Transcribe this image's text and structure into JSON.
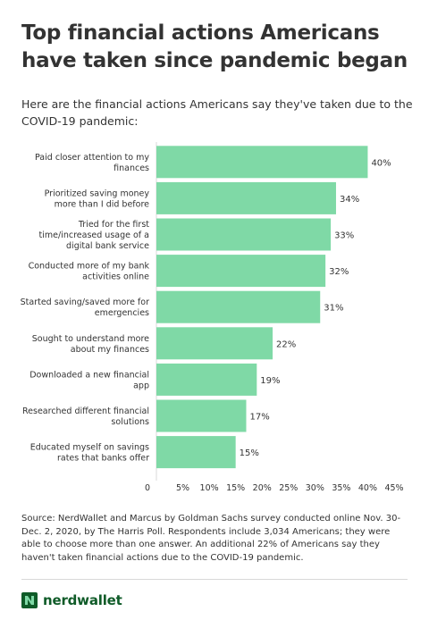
{
  "title": "Top financial actions Americans have taken since pandemic began",
  "subtitle": "Here are the financial actions Americans say they've taken due to the COVID-19 pandemic:",
  "source": "Source: NerdWallet and Marcus by Goldman Sachs survey conducted online Nov. 30-Dec. 2, 2020, by The Harris Poll. Respondents include 3,034 Americans; they were able to choose more than one answer. An additional 22% of Americans say they haven't taken financial actions due to the COVID-19 pandemic.",
  "brand": {
    "name": "nerdwallet",
    "logo_icon": "nerdwallet-logo-icon",
    "color": "#0f5b28"
  },
  "colors": {
    "bar": "#7fd9a6",
    "text": "#333333",
    "axis": "#d8d8d8"
  },
  "chart_data": {
    "type": "bar",
    "orientation": "horizontal",
    "categories": [
      [
        "Paid closer attention to my",
        "finances"
      ],
      [
        "Prioritized saving money",
        "more than I did before"
      ],
      [
        "Tried for the first",
        "time/increased usage of a",
        "digital bank service"
      ],
      [
        "Conducted more of my bank",
        "activities online"
      ],
      [
        "Started saving/saved more for",
        "emergencies"
      ],
      [
        "Sought to understand more",
        "about my finances"
      ],
      [
        "Downloaded a new financial",
        "app"
      ],
      [
        "Researched different financial",
        "solutions"
      ],
      [
        "Educated myself on savings",
        "rates that banks offer"
      ]
    ],
    "values": [
      40,
      34,
      33,
      32,
      31,
      22,
      19,
      17,
      15
    ],
    "value_labels": [
      "40%",
      "34%",
      "33%",
      "32%",
      "31%",
      "22%",
      "19%",
      "17%",
      "15%"
    ],
    "x_ticks": [
      0,
      5,
      10,
      15,
      20,
      25,
      30,
      35,
      40,
      45
    ],
    "x_tick_labels": [
      "0",
      "5%",
      "10%",
      "15%",
      "20%",
      "25%",
      "30%",
      "35%",
      "40%",
      "45%"
    ],
    "xlim": [
      0,
      45
    ],
    "grid": false,
    "legend": "none"
  }
}
